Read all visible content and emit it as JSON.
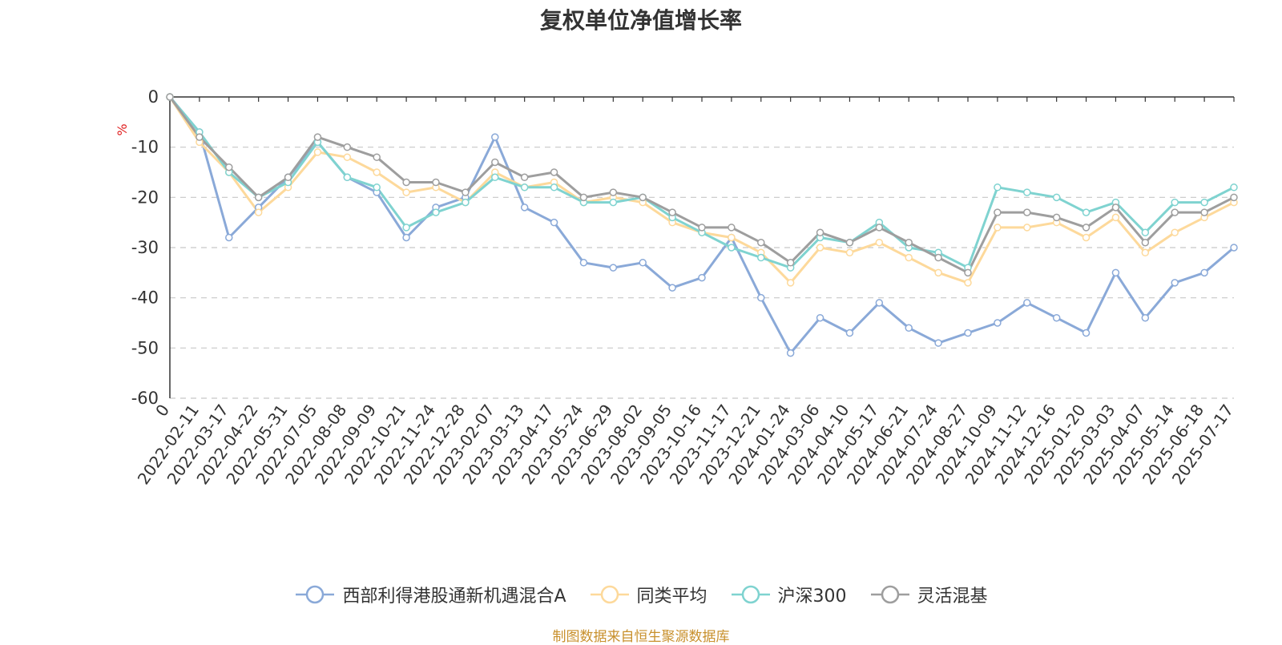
{
  "chart_data": {
    "type": "line",
    "title": "复权单位净值增长率",
    "ylabel": "%",
    "ylim": [
      -60,
      0
    ],
    "yticks": [
      0,
      -10,
      -20,
      -30,
      -40,
      -50,
      -60
    ],
    "grid": "horizontal dashed",
    "legend_position": "bottom",
    "categories": [
      "0",
      "2022-02-11",
      "2022-03-17",
      "2022-04-22",
      "2022-05-31",
      "2022-07-05",
      "2022-08-08",
      "2022-09-09",
      "2022-10-21",
      "2022-11-24",
      "2022-12-28",
      "2023-02-07",
      "2023-03-13",
      "2023-04-17",
      "2023-05-24",
      "2023-06-29",
      "2023-08-02",
      "2023-09-05",
      "2023-10-16",
      "2023-11-17",
      "2023-12-21",
      "2024-01-24",
      "2024-03-06",
      "2024-04-10",
      "2024-05-17",
      "2024-06-21",
      "2024-07-24",
      "2024-08-27",
      "2024-10-09",
      "2024-11-12",
      "2024-12-16",
      "2025-01-20",
      "2025-03-03",
      "2025-04-07",
      "2025-05-14",
      "2025-06-18",
      "2025-07-17"
    ],
    "series": [
      {
        "name": "西部利得港股通新机遇混合A",
        "color": "#8aa9d8",
        "values": [
          0,
          -7,
          -28,
          -22,
          -16,
          -9,
          -16,
          -19,
          -28,
          -22,
          -20,
          -8,
          -22,
          -25,
          -33,
          -34,
          -33,
          -38,
          -36,
          -28,
          -40,
          -51,
          -44,
          -47,
          -41,
          -46,
          -49,
          -47,
          -45,
          -41,
          -44,
          -47,
          -35,
          -44,
          -37,
          -35,
          -30
        ]
      },
      {
        "name": "同类平均",
        "color": "#fdd99b",
        "values": [
          0,
          -9,
          -15,
          -23,
          -18,
          -11,
          -12,
          -15,
          -19,
          -18,
          -21,
          -15,
          -18,
          -17,
          -21,
          -20,
          -21,
          -25,
          -27,
          -28,
          -31,
          -37,
          -30,
          -31,
          -29,
          -32,
          -35,
          -37,
          -26,
          -26,
          -25,
          -28,
          -24,
          -31,
          -27,
          -24,
          -21
        ]
      },
      {
        "name": "沪深300",
        "color": "#7fd3d0",
        "values": [
          0,
          -7,
          -15,
          -20,
          -17,
          -9,
          -16,
          -18,
          -26,
          -23,
          -21,
          -16,
          -18,
          -18,
          -21,
          -21,
          -20,
          -24,
          -27,
          -30,
          -32,
          -34,
          -28,
          -29,
          -25,
          -30,
          -31,
          -34,
          -18,
          -19,
          -20,
          -23,
          -21,
          -27,
          -21,
          -21,
          -18
        ]
      },
      {
        "name": "灵活混基",
        "color": "#9e9e9e",
        "values": [
          0,
          -8,
          -14,
          -20,
          -16,
          -8,
          -10,
          -12,
          -17,
          -17,
          -19,
          -13,
          -16,
          -15,
          -20,
          -19,
          -20,
          -23,
          -26,
          -26,
          -29,
          -33,
          -27,
          -29,
          -26,
          -29,
          -32,
          -35,
          -23,
          -23,
          -24,
          -26,
          -22,
          -29,
          -23,
          -23,
          -20
        ]
      }
    ]
  },
  "source_note": "制图数据来自恒生聚源数据库"
}
